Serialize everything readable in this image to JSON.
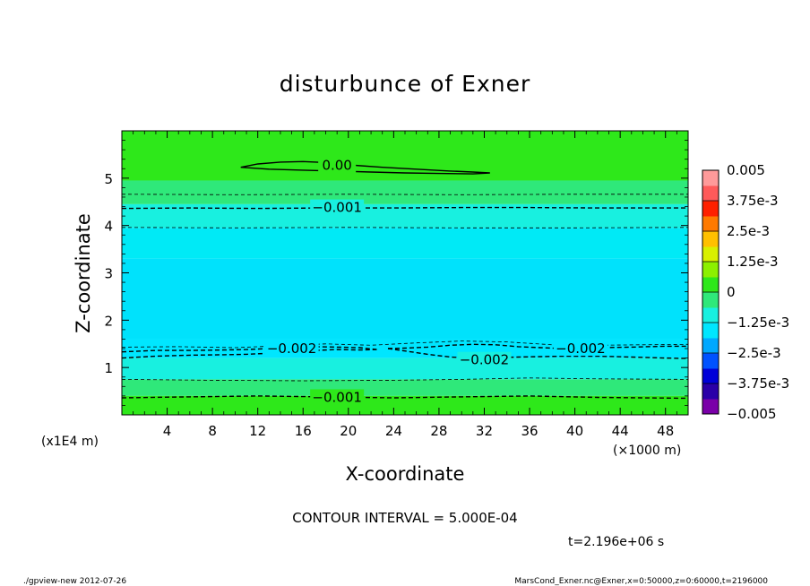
{
  "chart_data": {
    "type": "contour",
    "title": "disturbunce of Exner",
    "xlabel": "X-coordinate",
    "ylabel": "Z-coordinate",
    "x_unit_label": "(×1000 m)",
    "y_unit_label": "(x1E4 m)",
    "xlim": [
      0,
      50
    ],
    "ylim": [
      0,
      6
    ],
    "x_ticks": [
      "4",
      "8",
      "12",
      "16",
      "20",
      "24",
      "28",
      "32",
      "36",
      "40",
      "44",
      "48"
    ],
    "y_ticks": [
      "1",
      "2",
      "3",
      "4",
      "5"
    ],
    "colorbar": {
      "vmin": -0.005,
      "vmax": 0.005,
      "tick_labels": [
        "0.005",
        "3.75e-3",
        "2.5e-3",
        "1.25e-3",
        "0",
        "−1.25e-3",
        "−2.5e-3",
        "−3.75e-3",
        "−0.005"
      ],
      "colors": [
        "#7a00a8",
        "#2a00a8",
        "#0000d8",
        "#0052ff",
        "#00a8ff",
        "#00e6ff",
        "#18f0e0",
        "#2fe87a",
        "#2ee81a",
        "#8cf000",
        "#d8f000",
        "#ffc000",
        "#ff7a00",
        "#ff2000",
        "#ff5a5a",
        "#ff9a9a"
      ]
    },
    "fill_bands": [
      {
        "z0": 4.95,
        "z1": 6.0,
        "color": "#2ee81a"
      },
      {
        "z0": 4.45,
        "z1": 4.95,
        "color": "#2fe87a"
      },
      {
        "z0": 3.95,
        "z1": 4.45,
        "color": "#18f0e0"
      },
      {
        "z0": 3.3,
        "z1": 3.95,
        "color": "#00eaf6"
      },
      {
        "z0": 1.6,
        "z1": 3.3,
        "color": "#00e2fc"
      },
      {
        "z0": 1.2,
        "z1": 1.6,
        "color": "#00e6ff"
      },
      {
        "z0": 0.75,
        "z1": 1.2,
        "color": "#18f0e0"
      },
      {
        "z0": 0.4,
        "z1": 0.75,
        "color": "#2fe87a"
      },
      {
        "z0": 0.0,
        "z1": 0.4,
        "color": "#2ee81a"
      }
    ],
    "contours": [
      {
        "level": 0.0,
        "label": "0.00",
        "style": "solid",
        "label_at": [
          19,
          5.27
        ],
        "points": [
          [
            10.5,
            5.23
          ],
          [
            12,
            5.3
          ],
          [
            14,
            5.34
          ],
          [
            16,
            5.35
          ],
          [
            18,
            5.33
          ],
          [
            20,
            5.28
          ],
          [
            23,
            5.23
          ],
          [
            26,
            5.19
          ],
          [
            29,
            5.15
          ],
          [
            31,
            5.13
          ],
          [
            32.5,
            5.11
          ],
          [
            31,
            5.09
          ],
          [
            28,
            5.1
          ],
          [
            25,
            5.11
          ],
          [
            22,
            5.13
          ],
          [
            19,
            5.15
          ],
          [
            16,
            5.17
          ],
          [
            13,
            5.19
          ],
          [
            10.5,
            5.23
          ]
        ]
      },
      {
        "level": -0.0005,
        "label": "",
        "style": "dashed-thin",
        "points": [
          [
            0,
            4.66
          ],
          [
            10,
            4.65
          ],
          [
            20,
            4.66
          ],
          [
            30,
            4.65
          ],
          [
            40,
            4.66
          ],
          [
            50,
            4.66
          ]
        ]
      },
      {
        "level": -0.001,
        "label": "−0.001",
        "style": "dashed",
        "label_at": [
          19,
          4.38
        ],
        "points": [
          [
            0,
            4.36
          ],
          [
            6,
            4.37
          ],
          [
            12,
            4.36
          ],
          [
            18,
            4.37
          ],
          [
            24,
            4.37
          ],
          [
            30,
            4.38
          ],
          [
            36,
            4.38
          ],
          [
            42,
            4.37
          ],
          [
            50,
            4.37
          ]
        ]
      },
      {
        "level": -0.0015,
        "label": "",
        "style": "dashed-thin",
        "points": [
          [
            0,
            3.96
          ],
          [
            10,
            3.95
          ],
          [
            20,
            3.96
          ],
          [
            30,
            3.95
          ],
          [
            40,
            3.95
          ],
          [
            50,
            3.96
          ]
        ]
      },
      {
        "level": -0.002,
        "label": "−0.002",
        "style": "dashed",
        "label_at": [
          15,
          1.4
        ],
        "points": [
          [
            0,
            1.33
          ],
          [
            3,
            1.36
          ],
          [
            6,
            1.36
          ],
          [
            9,
            1.37
          ],
          [
            11,
            1.38
          ],
          [
            13,
            1.4
          ],
          [
            15,
            1.42
          ],
          [
            17,
            1.44
          ],
          [
            19,
            1.43
          ],
          [
            21,
            1.42
          ],
          [
            22.5,
            1.38
          ]
        ]
      },
      {
        "level": -0.002,
        "label": "",
        "style": "dashed",
        "points": [
          [
            0,
            1.2
          ],
          [
            3,
            1.24
          ],
          [
            6,
            1.26
          ],
          [
            9,
            1.27
          ],
          [
            11,
            1.28
          ],
          [
            13,
            1.3
          ],
          [
            15,
            1.32
          ],
          [
            17,
            1.36
          ],
          [
            19,
            1.38
          ],
          [
            21,
            1.37
          ],
          [
            22.5,
            1.38
          ]
        ]
      },
      {
        "level": -0.002,
        "label": "−0.002",
        "style": "dashed",
        "label_at": [
          40.5,
          1.4
        ],
        "points": [
          [
            23.5,
            1.4
          ],
          [
            25,
            1.41
          ],
          [
            27,
            1.43
          ],
          [
            29,
            1.47
          ],
          [
            31,
            1.49
          ],
          [
            33,
            1.48
          ],
          [
            35,
            1.44
          ],
          [
            37,
            1.42
          ],
          [
            39,
            1.4
          ],
          [
            42,
            1.42
          ],
          [
            45,
            1.43
          ],
          [
            48,
            1.45
          ],
          [
            50,
            1.45
          ]
        ]
      },
      {
        "level": -0.002,
        "label": "−0.002",
        "style": "dashed",
        "label_at": [
          32,
          1.16
        ],
        "points": [
          [
            23.5,
            1.4
          ],
          [
            25,
            1.35
          ],
          [
            27,
            1.28
          ],
          [
            29,
            1.22
          ],
          [
            31,
            1.2
          ],
          [
            33,
            1.21
          ],
          [
            35,
            1.22
          ],
          [
            37,
            1.23
          ],
          [
            39,
            1.24
          ],
          [
            42,
            1.24
          ],
          [
            45,
            1.22
          ],
          [
            48,
            1.2
          ],
          [
            50,
            1.19
          ]
        ]
      },
      {
        "level": -0.0025,
        "label": "",
        "style": "dashed-thin",
        "points": [
          [
            0,
            1.43
          ],
          [
            5,
            1.44
          ],
          [
            10,
            1.42
          ],
          [
            14,
            1.46
          ],
          [
            18,
            1.5
          ],
          [
            22,
            1.47
          ],
          [
            26,
            1.52
          ],
          [
            30,
            1.56
          ],
          [
            34,
            1.54
          ],
          [
            38,
            1.48
          ],
          [
            42,
            1.47
          ],
          [
            46,
            1.48
          ],
          [
            50,
            1.49
          ]
        ]
      },
      {
        "level": -0.0015,
        "label": "",
        "style": "dashed-thin",
        "points": [
          [
            0,
            0.75
          ],
          [
            8,
            0.73
          ],
          [
            16,
            0.72
          ],
          [
            24,
            0.73
          ],
          [
            30,
            0.75
          ],
          [
            36,
            0.78
          ],
          [
            42,
            0.76
          ],
          [
            50,
            0.75
          ]
        ]
      },
      {
        "level": -0.001,
        "label": "−0.001",
        "style": "dashed",
        "label_at": [
          19,
          0.37
        ],
        "points": [
          [
            0,
            0.36
          ],
          [
            6,
            0.38
          ],
          [
            12,
            0.4
          ],
          [
            18,
            0.38
          ],
          [
            24,
            0.36
          ],
          [
            30,
            0.38
          ],
          [
            36,
            0.4
          ],
          [
            42,
            0.37
          ],
          [
            50,
            0.35
          ]
        ]
      }
    ],
    "contour_interval_text": "CONTOUR INTERVAL = 5.000E-04",
    "time_text": "t=2.196e+06 s",
    "footer_left": "./gpview-new   2012-07-26",
    "footer_right": "MarsCond_Exner.nc@Exner,x=0:50000,z=0:60000,t=2196000"
  }
}
